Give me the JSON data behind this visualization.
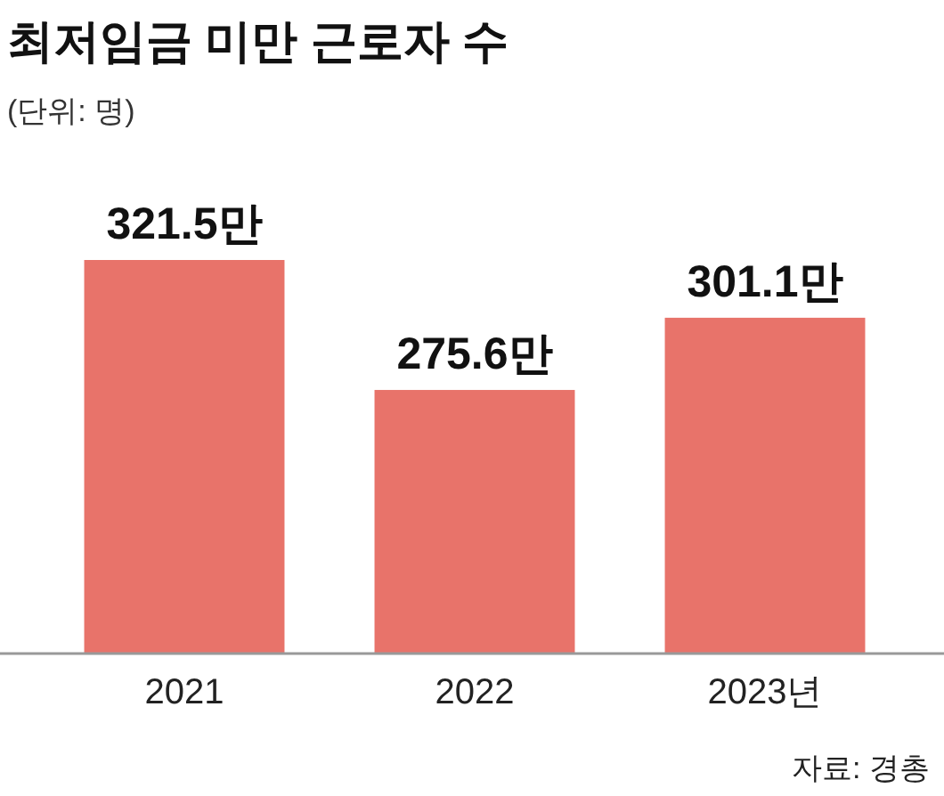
{
  "chart_data": {
    "type": "bar",
    "title": "최저임금 미만 근로자 수",
    "subtitle": "(단위: 명)",
    "categories": [
      "2021",
      "2022",
      "2023년"
    ],
    "values": [
      321.5,
      275.6,
      301.1
    ],
    "value_labels": [
      "321.5만",
      "275.6만",
      "301.1만"
    ],
    "color": "#e8736a",
    "ylim": [
      182.5,
      321.5
    ],
    "annotations": [
      "자료: 경총"
    ]
  }
}
